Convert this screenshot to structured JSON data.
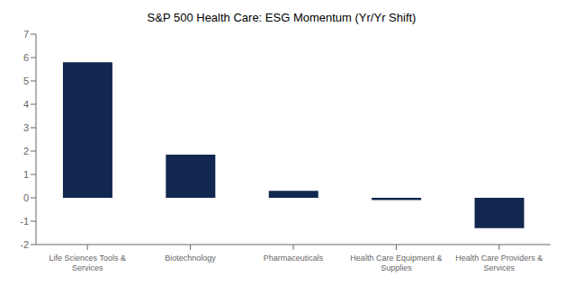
{
  "chart_data": {
    "type": "bar",
    "title": "S&P 500 Health Care: ESG Momentum (Yr/Yr Shift)",
    "categories": [
      "Life Sciences Tools &\nServices",
      "Biotechnology",
      "Pharmaceuticals",
      "Health Care Equipment &\nSupplies",
      "Health Care Providers &\nServices"
    ],
    "values": [
      5.8,
      1.85,
      0.3,
      -0.1,
      -1.3
    ],
    "color": "#12274F",
    "ylim": [
      -2,
      7
    ],
    "yticks": [
      -2,
      -1,
      0,
      1,
      2,
      3,
      4,
      5,
      6,
      7
    ],
    "grid": false
  }
}
